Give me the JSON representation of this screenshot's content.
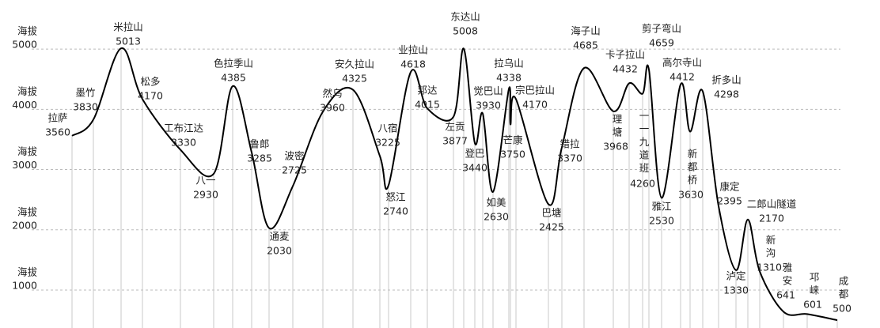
{
  "chart_data": {
    "type": "line",
    "y_label": "海拔",
    "color": "#000000",
    "grid": true,
    "categories": [
      "拉萨",
      "墨竹",
      "米拉山",
      "松多",
      "工布江达",
      "八一",
      "色拉季山",
      "鲁郎",
      "通麦",
      "波密",
      "然乌",
      "安久拉山",
      "八宿",
      "怒江",
      "业拉山",
      "邦达",
      "左贡",
      "东达山",
      "登巴",
      "觉巴山",
      "如美",
      "拉乌山",
      "芒康",
      "宗巴拉山",
      "巴塘",
      "错拉",
      "海子山",
      "理塘",
      "卡子拉山",
      "一一九道班",
      "剪子弯山",
      "雅江",
      "高尔寺山",
      "新都桥",
      "折多山",
      "康定",
      "泸定",
      "二郎山隧道",
      "新沟",
      "雅安",
      "邛崃",
      "成都"
    ],
    "values": [
      3560,
      3830,
      5013,
      4170,
      3330,
      2930,
      4385,
      3285,
      2030,
      2725,
      3960,
      4325,
      3225,
      2740,
      4618,
      4015,
      3877,
      5008,
      3440,
      3930,
      2630,
      4338,
      3750,
      4170,
      2425,
      3370,
      4685,
      3968,
      4432,
      4260,
      4659,
      2530,
      4412,
      3630,
      4298,
      2395,
      1330,
      2170,
      1310,
      641,
      601,
      500
    ],
    "ylim": [
      370,
      5815
    ],
    "yticks": [
      1000,
      2000,
      3000,
      4000,
      5000
    ]
  }
}
